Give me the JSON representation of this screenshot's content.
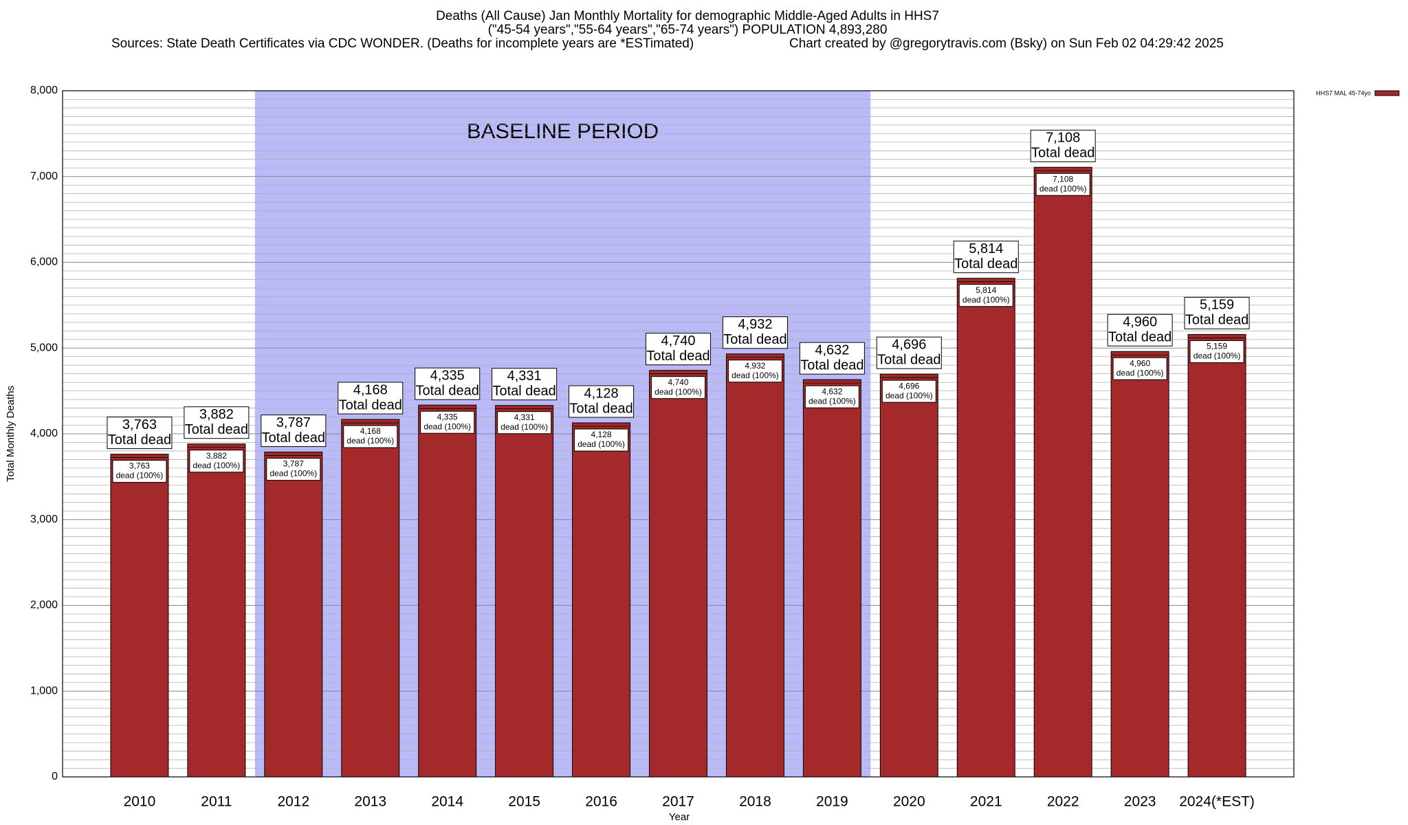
{
  "chart_data": {
    "type": "bar",
    "title": "Deaths (All Cause) Jan Monthly Mortality for demographic Middle-Aged Adults in HHS7",
    "subtitle": "(\"45-54 years\",\"55-64 years\",\"65-74 years\") POPULATION 4,893,280",
    "source": "Sources: State Death Certificates via CDC WONDER. (Deaths for incomplete years are *ESTimated)",
    "credit": "Chart created by @gregorytravis.com (Bsky) on Sun Feb 02 04:29:42 2025",
    "x_label": "Year",
    "y_label": "Total Monthly Deaths",
    "annotation": "BASELINE PERIOD",
    "baseline_categories": [
      "2012",
      "2019"
    ],
    "outer_label_text": "Total dead",
    "inner_label_text": "dead (100%)",
    "categories": [
      "2010",
      "2011",
      "2012",
      "2013",
      "2014",
      "2015",
      "2016",
      "2017",
      "2018",
      "2019",
      "2020",
      "2021",
      "2022",
      "2023",
      "2024(*EST)"
    ],
    "series": [
      {
        "name": "HHS7 MAL 45-74yo",
        "color": "#a4292a",
        "values": [
          3763,
          3882,
          3787,
          4168,
          4335,
          4331,
          4128,
          4740,
          4932,
          4632,
          4696,
          5814,
          7108,
          4960,
          5159
        ],
        "value_labels": [
          "3,763",
          "3,882",
          "3,787",
          "4,168",
          "4,335",
          "4,331",
          "4,128",
          "4,740",
          "4,932",
          "4,632",
          "4,696",
          "5,814",
          "7,108",
          "4,960",
          "5,159"
        ]
      }
    ],
    "ylim": [
      0,
      8000
    ],
    "yticks": [
      0,
      {
        "value": 1000,
        "label": "1,000"
      },
      {
        "value": 2000,
        "label": "2,000"
      },
      {
        "value": 3000,
        "label": "3,000"
      },
      {
        "value": 4000,
        "label": "4,000"
      },
      {
        "value": 5000,
        "label": "5,000"
      },
      {
        "value": 6000,
        "label": "6,000"
      },
      {
        "value": 7000,
        "label": "7,000"
      },
      {
        "value": 8000,
        "label": "8,000"
      }
    ],
    "grid": true,
    "legend": "top-right"
  }
}
